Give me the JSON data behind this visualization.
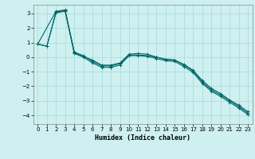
{
  "xlabel": "Humidex (Indice chaleur)",
  "bg_color": "#cff0f0",
  "grid_color": "#aadddd",
  "line_color": "#006666",
  "xlim": [
    -0.5,
    23.5
  ],
  "ylim": [
    -4.6,
    3.6
  ],
  "yticks": [
    -4,
    -3,
    -2,
    -1,
    0,
    1,
    2,
    3
  ],
  "xticks": [
    0,
    1,
    2,
    3,
    4,
    5,
    6,
    7,
    8,
    9,
    10,
    11,
    12,
    13,
    14,
    15,
    16,
    17,
    18,
    19,
    20,
    21,
    22,
    23
  ],
  "line1_x": [
    0,
    1,
    2,
    3,
    4,
    5,
    6,
    7,
    8,
    9,
    10,
    11,
    12,
    13,
    14,
    15,
    16,
    17,
    18,
    19,
    20,
    21,
    22,
    23
  ],
  "line1_y": [
    0.9,
    0.75,
    3.1,
    3.2,
    0.35,
    0.1,
    -0.3,
    -0.6,
    -0.6,
    -0.45,
    0.15,
    0.15,
    0.1,
    0.0,
    -0.15,
    -0.2,
    -0.55,
    -0.95,
    -1.7,
    -2.25,
    -2.6,
    -3.0,
    -3.4,
    -3.85
  ],
  "line2_x": [
    0,
    2,
    3,
    4,
    5,
    6,
    7,
    8,
    9,
    10,
    11,
    12,
    13,
    14,
    15,
    16,
    17,
    18,
    19,
    20,
    21,
    22,
    23
  ],
  "line2_y": [
    0.9,
    3.15,
    3.25,
    0.3,
    0.05,
    -0.2,
    -0.55,
    -0.55,
    -0.4,
    0.2,
    0.25,
    0.2,
    0.0,
    -0.15,
    -0.2,
    -0.5,
    -0.9,
    -1.6,
    -2.15,
    -2.5,
    -2.95,
    -3.3,
    -3.75
  ],
  "line3_x": [
    0,
    1,
    2,
    3,
    4,
    5,
    6,
    7,
    8,
    9,
    10,
    11,
    12,
    13,
    14,
    15,
    16,
    17,
    18,
    19,
    20,
    21,
    22,
    23
  ],
  "line3_y": [
    0.9,
    0.75,
    3.05,
    3.15,
    0.25,
    0.0,
    -0.4,
    -0.7,
    -0.7,
    -0.55,
    0.1,
    0.1,
    0.05,
    -0.1,
    -0.25,
    -0.3,
    -0.65,
    -1.05,
    -1.8,
    -2.35,
    -2.7,
    -3.1,
    -3.5,
    -3.95
  ]
}
